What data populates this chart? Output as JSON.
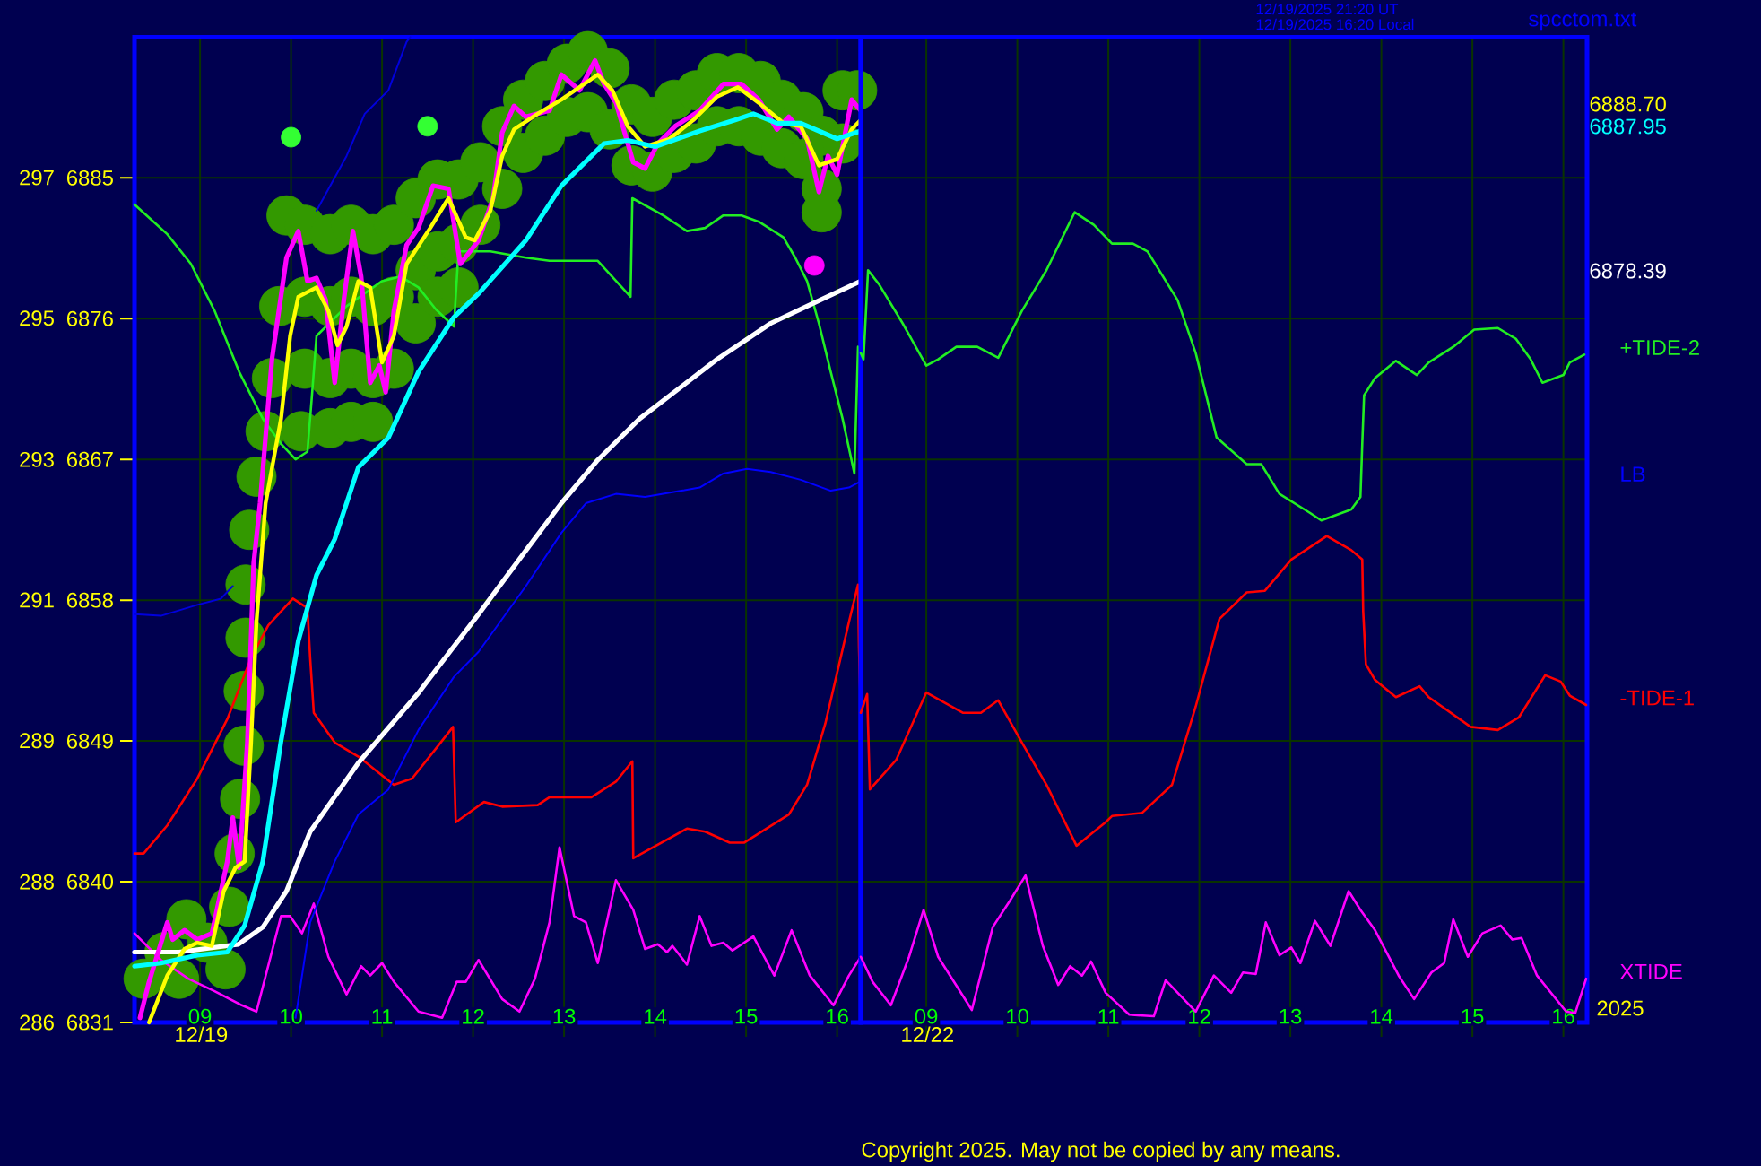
{
  "chart_data": [
    {
      "type": "line",
      "xlabel": "12/19",
      "xlim": [
        8.28,
        16.26
      ],
      "xticks": [
        {
          "value": 9,
          "label": "09"
        },
        10,
        11,
        12,
        13,
        14,
        15,
        16
      ],
      "ylim": [
        6831,
        6894
      ],
      "yticks": [
        6831,
        6840,
        6849,
        6858,
        6867,
        6876,
        6885
      ],
      "y2lim": [
        285.75,
        298.58
      ],
      "y2ticks": [
        {
          "value": 285.75,
          "label": "286"
        },
        {
          "value": 287.58,
          "label": "288"
        },
        {
          "value": 289.42,
          "label": "289"
        },
        {
          "value": 291.25,
          "label": "291"
        },
        {
          "value": 293.08,
          "label": "293"
        },
        {
          "value": 294.92,
          "label": "295"
        },
        {
          "value": 296.75,
          "label": "297"
        }
      ],
      "grid": true,
      "series": [
        {
          "type": "scatter",
          "marker": "circle",
          "color": "#339900",
          "x": [
            8.38,
            8.61,
            8.77,
            8.85,
            9.08,
            9.28,
            9.32,
            9.38,
            9.44,
            9.48,
            9.48,
            9.5,
            9.5,
            9.54,
            9.62,
            9.72,
            9.79,
            9.87,
            9.95,
            10.15,
            10.15,
            10.15,
            10.11,
            10.43,
            10.43,
            10.43,
            10.43,
            10.66,
            10.66,
            10.66,
            10.66,
            10.9,
            10.9,
            10.9,
            10.9,
            11.13,
            11.13,
            11.13,
            11.37,
            11.37,
            11.37,
            11.61,
            11.61,
            11.61,
            11.84,
            11.84,
            11.84,
            12.08,
            12.08,
            12.32,
            12.32,
            12.55,
            12.55,
            12.79,
            12.79,
            13.03,
            13.03,
            13.26,
            13.26,
            13.5,
            13.5,
            13.74,
            13.74,
            13.97,
            13.97,
            14.21,
            14.21,
            14.45,
            14.45,
            14.68,
            14.68,
            14.92,
            14.92,
            15.16,
            15.16,
            15.39,
            15.39,
            15.63,
            15.63,
            15.83,
            15.83,
            15.83,
            16.06,
            16.06,
            16.22
          ],
          "values": [
            6833.8,
            6835.5,
            6833.8,
            6837.6,
            6836.1,
            6834.4,
            6838.4,
            6841.8,
            6845.3,
            6848.7,
            6852.2,
            6855.6,
            6859.0,
            6862.5,
            6865.9,
            6868.8,
            6872.2,
            6876.8,
            6882.6,
            6882.0,
            6877.4,
            6872.8,
            6868.8,
            6881.4,
            6876.8,
            6872.2,
            6869.0,
            6882.0,
            6877.4,
            6872.8,
            6869.4,
            6881.4,
            6876.8,
            6872.2,
            6869.4,
            6882.0,
            6877.4,
            6872.8,
            6883.7,
            6879.1,
            6875.7,
            6884.9,
            6880.3,
            6877.4,
            6884.9,
            6880.8,
            6878.0,
            6886.0,
            6882.0,
            6888.3,
            6884.3,
            6890.0,
            6886.6,
            6891.2,
            6887.7,
            6892.3,
            6888.9,
            6893.1,
            6889.2,
            6892.0,
            6888.1,
            6889.7,
            6885.8,
            6888.9,
            6885.4,
            6890.0,
            6886.6,
            6890.6,
            6887.2,
            6891.7,
            6888.3,
            6891.7,
            6888.3,
            6891.2,
            6887.7,
            6890.0,
            6886.9,
            6889.2,
            6886.2,
            6887.7,
            6884.3,
            6882.8,
            6890.6,
            6887.2,
            6890.6
          ]
        },
        {
          "color": "#ff00ff",
          "x": [
            8.28,
            8.57,
            8.87,
            9.16,
            9.46,
            9.62,
            9.89,
            9.99,
            10.12,
            10.25,
            10.41,
            10.61,
            10.77,
            10.87,
            11.0,
            11.13,
            11.4,
            11.66,
            11.82,
            11.92,
            12.06,
            12.32,
            12.51,
            12.68,
            12.84,
            12.95,
            13.11,
            13.24,
            13.37,
            13.57,
            13.76,
            13.89,
            14.03,
            14.13,
            14.19,
            14.35,
            14.49,
            14.62,
            14.75,
            14.85,
            15.08,
            15.31,
            15.5,
            15.7,
            15.96,
            16.13,
            16.26
          ],
          "values": [
            6836.7,
            6835.0,
            6833.8,
            6833.0,
            6832.1,
            6831.7,
            6837.8,
            6837.8,
            6836.7,
            6838.6,
            6835.2,
            6832.8,
            6834.6,
            6834.0,
            6834.8,
            6833.6,
            6831.7,
            6831.3,
            6833.6,
            6833.6,
            6835.0,
            6832.5,
            6831.7,
            6833.8,
            6837.4,
            6842.2,
            6837.8,
            6837.4,
            6834.8,
            6840.1,
            6838.2,
            6835.7,
            6836.0,
            6835.5,
            6835.9,
            6834.7,
            6837.8,
            6835.9,
            6836.1,
            6835.6,
            6836.5,
            6834.0,
            6836.9,
            6834.0,
            6832.1,
            6834.0,
            6835.2
          ]
        },
        {
          "color": "#ff0000",
          "x": [
            8.28,
            8.38,
            8.64,
            8.97,
            9.3,
            9.56,
            9.75,
            10.02,
            10.18,
            10.21,
            10.25,
            10.48,
            10.74,
            11.13,
            11.33,
            11.59,
            11.78,
            11.81,
            12.12,
            12.32,
            12.71,
            12.84,
            13.3,
            13.57,
            13.75,
            13.76,
            14.35,
            14.55,
            14.82,
            14.98,
            15.47,
            15.67,
            15.87,
            16.13,
            16.23,
            16.24,
            16.26
          ],
          "values": [
            6841.8,
            6841.8,
            6843.6,
            6846.6,
            6850.4,
            6854.3,
            6856.4,
            6858.1,
            6857.5,
            6854.3,
            6850.8,
            6848.9,
            6848.0,
            6846.2,
            6846.6,
            6848.5,
            6849.9,
            6843.8,
            6845.1,
            6844.8,
            6844.9,
            6845.4,
            6845.4,
            6846.4,
            6847.7,
            6841.5,
            6843.4,
            6843.2,
            6842.5,
            6842.5,
            6844.3,
            6846.2,
            6850.1,
            6856.6,
            6859.0,
            6855.0,
            6850.8
          ]
        },
        {
          "color": "#22ee22",
          "x": [
            8.28,
            8.64,
            8.9,
            9.16,
            9.43,
            9.69,
            9.89,
            10.05,
            10.18,
            10.23,
            10.28,
            10.61,
            11.0,
            11.2,
            11.4,
            11.59,
            11.79,
            11.84,
            12.19,
            12.58,
            12.84,
            13.37,
            13.73,
            13.75,
            14.09,
            14.35,
            14.55,
            14.75,
            14.95,
            15.14,
            15.41,
            15.54,
            15.67,
            15.8,
            15.93,
            16.06,
            16.19,
            16.23,
            16.26
          ],
          "values": [
            6883.3,
            6881.4,
            6879.5,
            6876.5,
            6872.6,
            6869.6,
            6868.0,
            6867.0,
            6867.5,
            6871.1,
            6874.9,
            6876.8,
            6878.4,
            6878.7,
            6878.0,
            6876.6,
            6875.5,
            6880.3,
            6880.3,
            6879.9,
            6879.7,
            6879.7,
            6877.4,
            6883.7,
            6882.6,
            6881.6,
            6881.8,
            6882.6,
            6882.6,
            6882.2,
            6881.2,
            6879.9,
            6878.4,
            6875.7,
            6872.6,
            6869.6,
            6866.1,
            6874.2,
            6873.8
          ]
        },
        {
          "name": "LB",
          "color": "#0000ff",
          "x": [
            10.05,
            10.21,
            10.48,
            10.74,
            11.07,
            11.4,
            11.79,
            12.06,
            12.58,
            12.97,
            13.24,
            13.57,
            13.89,
            14.29,
            14.49,
            14.75,
            15.01,
            15.27,
            15.6,
            15.93,
            16.13,
            16.26
          ],
          "values": [
            6831.3,
            6837.4,
            6841.3,
            6844.3,
            6845.9,
            6849.7,
            6853.1,
            6854.7,
            6858.9,
            6862.3,
            6864.2,
            6864.8,
            6864.6,
            6865.0,
            6865.2,
            6866.1,
            6866.4,
            6866.2,
            6865.7,
            6865.0,
            6865.2,
            6865.6
          ]
        },
        {
          "color": "#0000dd",
          "x": [
            8.28,
            8.57,
            8.97,
            9.23,
            9.36,
            9.8,
            10.28,
            10.61,
            10.81,
            11.07,
            11.27,
            11.31
          ],
          "values": [
            6857.1,
            6857.0,
            6857.7,
            6858.1,
            6858.9,
            null,
            6882.9,
            6886.4,
            6889.1,
            6890.6,
            6893.7,
            6894.0
          ]
        },
        {
          "color": "#ffffff",
          "x": [
            8.28,
            8.77,
            9.42,
            9.69,
            9.95,
            10.21,
            10.74,
            11.39,
            12.06,
            12.57,
            12.97,
            13.36,
            13.83,
            14.68,
            15.27,
            15.67,
            16.26
          ],
          "values": [
            6835.5,
            6835.5,
            6836.0,
            6837.1,
            6839.4,
            6843.2,
            6847.6,
            6852.0,
            6857.1,
            6861.1,
            6864.2,
            6866.9,
            6869.6,
            6873.4,
            6875.7,
            6876.8,
            6878.4
          ]
        },
        {
          "color": "#ff00ff",
          "x": [
            8.34,
            8.44,
            8.64,
            8.7,
            8.83,
            8.97,
            9.13,
            9.3,
            9.36,
            9.43,
            9.52,
            9.59,
            9.66,
            9.79,
            9.95,
            10.08,
            10.18,
            10.28,
            10.38,
            10.48,
            10.58,
            10.68,
            10.77,
            10.87,
            10.97,
            11.04,
            11.13,
            11.27,
            11.4,
            11.56,
            11.73,
            11.86,
            12.06,
            12.22,
            12.32,
            12.45,
            12.58,
            12.84,
            12.97,
            13.17,
            13.34,
            13.44,
            13.57,
            13.76,
            13.89,
            14.03,
            14.22,
            14.49,
            14.75,
            14.95,
            15.14,
            15.34,
            15.47,
            15.67,
            15.8,
            15.9,
            16.0,
            16.16,
            16.26
          ],
          "values": [
            6831.3,
            6833.6,
            6837.4,
            6836.3,
            6836.9,
            6836.3,
            6836.7,
            6841.3,
            6844.1,
            6840.9,
            6848.9,
            6860.4,
            6864.2,
            6873.4,
            6879.9,
            6881.6,
            6878.4,
            6878.6,
            6877.2,
            6871.9,
            6877.2,
            6881.6,
            6878.7,
            6871.9,
            6873.0,
            6871.3,
            6876.5,
            6880.7,
            6881.8,
            6884.5,
            6884.3,
            6879.5,
            6881.0,
            6883.7,
            6887.9,
            6889.6,
            6888.9,
            6889.3,
            6891.6,
            6890.6,
            6892.5,
            6891.0,
            6889.8,
            6886.0,
            6885.6,
            6887.2,
            6888.3,
            6889.3,
            6891.0,
            6891.0,
            6890.0,
            6888.1,
            6888.9,
            6887.5,
            6884.1,
            6886.4,
            6885.2,
            6890.0,
            6889.3
          ]
        },
        {
          "color": "#ffff00",
          "x": [
            8.44,
            8.64,
            8.83,
            8.97,
            9.13,
            9.26,
            9.39,
            9.49,
            9.56,
            9.62,
            9.72,
            9.89,
            9.99,
            10.08,
            10.28,
            10.41,
            10.51,
            10.61,
            10.74,
            10.87,
            11.0,
            11.13,
            11.27,
            11.53,
            11.73,
            11.92,
            12.02,
            12.19,
            12.32,
            12.45,
            12.71,
            12.97,
            13.37,
            13.53,
            13.7,
            13.89,
            14.16,
            14.42,
            14.68,
            14.91,
            15.14,
            15.41,
            15.6,
            15.8,
            16.0,
            16.16,
            16.26
          ],
          "values": [
            6831.0,
            6834.0,
            6835.7,
            6836.1,
            6835.9,
            6839.4,
            6840.9,
            6841.3,
            6848.9,
            6856.6,
            6864.2,
            6869.6,
            6874.9,
            6877.4,
            6878.0,
            6876.5,
            6874.3,
            6875.5,
            6878.4,
            6878.0,
            6873.2,
            6874.9,
            6879.5,
            6881.8,
            6883.7,
            6881.2,
            6881.0,
            6882.9,
            6886.4,
            6888.1,
            6889.1,
            6890.0,
            6891.6,
            6890.6,
            6888.3,
            6887.0,
            6887.5,
            6888.7,
            6890.2,
            6890.8,
            6889.8,
            6888.5,
            6888.3,
            6885.8,
            6886.2,
            6888.1,
            6888.7
          ]
        },
        {
          "color": "#00ffff",
          "x": [
            8.28,
            8.57,
            8.97,
            9.3,
            9.49,
            9.69,
            9.89,
            10.08,
            10.28,
            10.48,
            10.74,
            11.07,
            11.4,
            11.79,
            12.06,
            12.58,
            12.97,
            13.44,
            13.7,
            14.0,
            14.49,
            14.88,
            15.08,
            15.34,
            15.6,
            16.0,
            16.26
          ],
          "values": [
            6834.6,
            6834.8,
            6835.3,
            6835.5,
            6837.2,
            6841.3,
            6849.0,
            6855.4,
            6859.6,
            6861.9,
            6866.5,
            6868.4,
            6872.6,
            6876.1,
            6877.6,
            6881.0,
            6884.5,
            6887.2,
            6887.4,
            6887.0,
            6888.0,
            6888.7,
            6889.1,
            6888.5,
            6888.5,
            6887.5,
            6888.0
          ]
        },
        {
          "type": "scatter",
          "marker": "circle",
          "colors": [
            "#33ff33",
            "#33ff33",
            "#ff00ff"
          ],
          "x": [
            10.0,
            11.5,
            15.75
          ],
          "values": [
            6887.6,
            6888.3,
            6879.4
          ]
        }
      ]
    },
    {
      "type": "line",
      "xlabel": "12/22",
      "annotations": [
        "12/19/2025 21:20 UT",
        "12/19/2025 16:20 Local",
        "spcctom.txt",
        "6888.70",
        "6887.95",
        "6878.39",
        "2025",
        "Copyright 2025. May not be copied by any means."
      ],
      "xlim": [
        8.28,
        16.26
      ],
      "xticks": [
        {
          "value": 9,
          "label": "09"
        },
        10,
        11,
        12,
        13,
        14,
        15,
        16
      ],
      "ylim": [
        6831,
        6894
      ],
      "yticks": [
        6831,
        6840,
        6849,
        6858,
        6867,
        6876,
        6885
      ],
      "tick_labels": "x",
      "grid": true,
      "series": [
        {
          "name": "XTIDE",
          "color": "#ff00ff",
          "x": [
            8.28,
            8.41,
            8.61,
            8.81,
            8.97,
            9.13,
            9.5,
            9.73,
            9.92,
            10.09,
            10.28,
            10.45,
            10.58,
            10.71,
            10.81,
            10.97,
            11.23,
            11.5,
            11.63,
            11.96,
            12.16,
            12.35,
            12.48,
            12.62,
            12.73,
            12.88,
            13.01,
            13.11,
            13.27,
            13.44,
            13.64,
            13.77,
            13.93,
            14.19,
            14.36,
            14.55,
            14.69,
            14.79,
            14.95,
            15.11,
            15.31,
            15.44,
            15.54,
            15.71,
            16.03,
            16.13,
            16.25
          ],
          "values": [
            6835.2,
            6833.6,
            6832.1,
            6835.2,
            6838.2,
            6835.2,
            6831.8,
            6837.1,
            6838.8,
            6840.4,
            6835.9,
            6833.4,
            6834.6,
            6834.0,
            6834.9,
            6832.9,
            6831.5,
            6831.4,
            6833.7,
            6831.7,
            6834.0,
            6832.9,
            6834.2,
            6834.1,
            6837.4,
            6835.3,
            6835.8,
            6834.8,
            6837.5,
            6835.9,
            6839.4,
            6838.2,
            6836.9,
            6834.0,
            6832.5,
            6834.2,
            6834.8,
            6837.6,
            6835.2,
            6836.7,
            6837.2,
            6836.3,
            6836.4,
            6834.0,
            6831.7,
            6831.6,
            6833.8
          ]
        },
        {
          "name": "-TIDE-1",
          "color": "#ff0000",
          "x": [
            8.28,
            8.35,
            8.38,
            8.67,
            9.0,
            9.4,
            9.6,
            9.79,
            10.05,
            10.32,
            10.65,
            10.97,
            11.04,
            11.37,
            11.7,
            11.96,
            12.22,
            12.52,
            12.72,
            13.01,
            13.4,
            13.67,
            13.79,
            13.8,
            13.83,
            13.93,
            14.16,
            14.42,
            14.52,
            14.98,
            15.28,
            15.51,
            15.8,
            15.97,
            16.07,
            16.25
          ],
          "values": [
            6850.8,
            6852.0,
            6845.9,
            6847.8,
            6852.1,
            6850.8,
            6850.8,
            6851.6,
            6848.9,
            6846.2,
            6842.3,
            6843.8,
            6844.2,
            6844.4,
            6846.2,
            6851.2,
            6856.8,
            6858.5,
            6858.6,
            6860.6,
            6862.1,
            6861.2,
            6860.6,
            6857.3,
            6853.9,
            6852.9,
            6851.8,
            6852.5,
            6851.8,
            6849.9,
            6849.7,
            6850.5,
            6853.2,
            6852.8,
            6851.9,
            6851.3
          ]
        },
        {
          "name": "+TIDE-2",
          "color": "#22ee22",
          "x": [
            8.28,
            8.31,
            8.36,
            8.48,
            8.74,
            9.0,
            9.13,
            9.33,
            9.56,
            9.79,
            10.05,
            10.32,
            10.63,
            10.84,
            11.04,
            11.27,
            11.43,
            11.76,
            11.96,
            12.19,
            12.52,
            12.68,
            12.88,
            13.21,
            13.34,
            13.67,
            13.77,
            13.79,
            13.81,
            13.93,
            14.16,
            14.39,
            14.52,
            14.79,
            15.02,
            15.28,
            15.48,
            15.64,
            15.77,
            16.0,
            16.07,
            16.23
          ],
          "values": [
            6873.8,
            6873.4,
            6879.1,
            6878.2,
            6875.7,
            6873.0,
            6873.4,
            6874.2,
            6874.2,
            6873.5,
            6876.5,
            6879.1,
            6882.8,
            6882.0,
            6880.8,
            6880.8,
            6880.3,
            6877.2,
            6873.8,
            6868.4,
            6866.7,
            6866.7,
            6864.8,
            6863.6,
            6863.1,
            6863.8,
            6864.6,
            6868.0,
            6871.1,
            6872.2,
            6873.3,
            6872.4,
            6873.2,
            6874.2,
            6875.3,
            6875.4,
            6874.7,
            6873.4,
            6871.9,
            6872.4,
            6873.2,
            6873.7
          ]
        }
      ]
    }
  ]
}
